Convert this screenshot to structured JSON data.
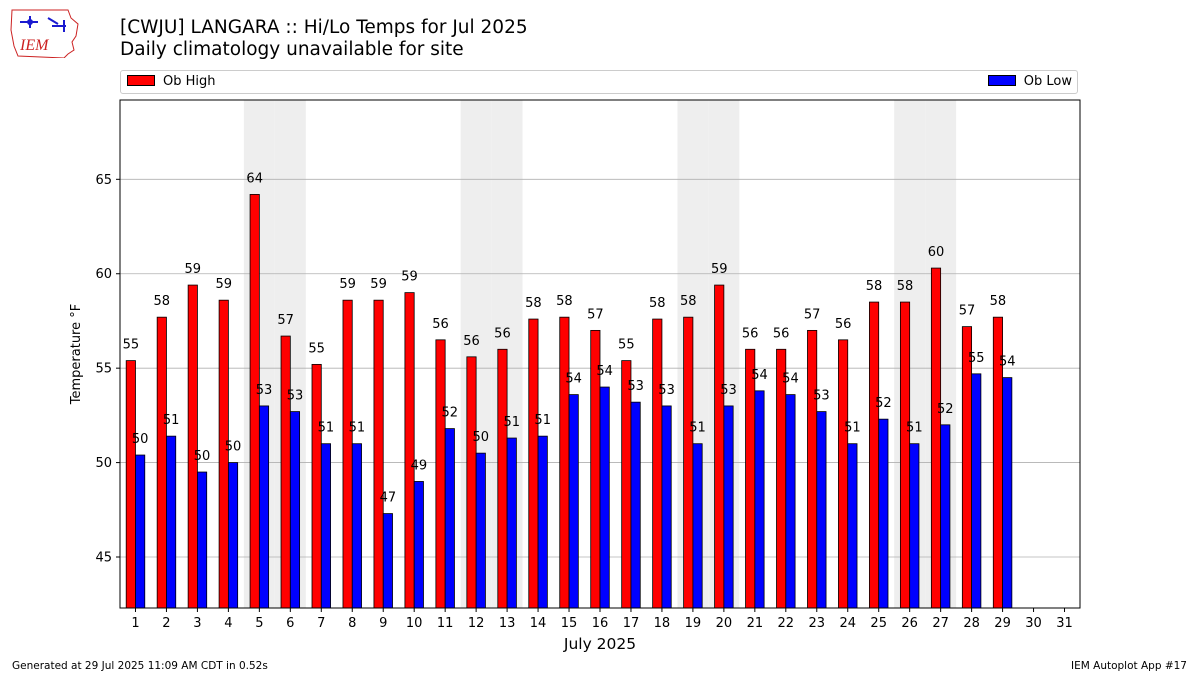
{
  "header": {
    "logo_text": "IEM",
    "title_line1": "[CWJU] LANGARA :: Hi/Lo Temps for Jul 2025",
    "title_line2": "Daily climatology unavailable for site"
  },
  "footer": {
    "generated": "Generated at 29 Jul 2025 11:09 AM CDT in 0.52s",
    "app": "IEM Autoplot App #17"
  },
  "colors": {
    "high": "#ff0000",
    "low": "#0000ff",
    "weekend_shade": "#eeeeee",
    "grid": "#b0b0b0"
  },
  "chart_data": {
    "type": "bar",
    "xlabel": "July 2025",
    "ylabel": "Temperature °F",
    "ylim": [
      42.3,
      69.2
    ],
    "yticks": [
      45,
      50,
      55,
      60,
      65
    ],
    "grid": "horizontal",
    "legend_placement": "top",
    "categories": [
      "1",
      "2",
      "3",
      "4",
      "5",
      "6",
      "7",
      "8",
      "9",
      "10",
      "11",
      "12",
      "13",
      "14",
      "15",
      "16",
      "17",
      "18",
      "19",
      "20",
      "21",
      "22",
      "23",
      "24",
      "25",
      "26",
      "27",
      "28",
      "29",
      "30",
      "31"
    ],
    "shaded_days": [
      5,
      6,
      12,
      13,
      19,
      20,
      26,
      27
    ],
    "series": [
      {
        "name": "Ob High",
        "values": [
          55.4,
          57.7,
          59.4,
          58.6,
          64.2,
          56.7,
          55.2,
          58.6,
          58.6,
          59.0,
          56.5,
          55.6,
          56.0,
          57.6,
          57.7,
          57.0,
          55.4,
          57.6,
          57.7,
          59.4,
          56.0,
          56.0,
          57.0,
          56.5,
          58.5,
          58.5,
          60.3,
          57.2,
          57.7,
          null,
          null
        ],
        "labels": [
          "55",
          "58",
          "59",
          "59",
          "64",
          "57",
          "55",
          "59",
          "59",
          "59",
          "56",
          "56",
          "56",
          "58",
          "58",
          "57",
          "55",
          "58",
          "58",
          "59",
          "56",
          "56",
          "57",
          "56",
          "58",
          "58",
          "60",
          "57",
          "58",
          "",
          ""
        ]
      },
      {
        "name": "Ob Low",
        "values": [
          50.4,
          51.4,
          49.5,
          50.0,
          53.0,
          52.7,
          51.0,
          51.0,
          47.3,
          49.0,
          51.8,
          50.5,
          51.3,
          51.4,
          53.6,
          54.0,
          53.2,
          53.0,
          51.0,
          53.0,
          53.8,
          53.6,
          52.7,
          51.0,
          52.3,
          51.0,
          52.0,
          54.7,
          54.5,
          null,
          null
        ],
        "labels": [
          "50",
          "51",
          "50",
          "50",
          "53",
          "53",
          "51",
          "51",
          "47",
          "49",
          "52",
          "50",
          "51",
          "51",
          "54",
          "54",
          "53",
          "53",
          "51",
          "53",
          "54",
          "54",
          "53",
          "51",
          "52",
          "51",
          "52",
          "55",
          "54",
          "",
          ""
        ]
      }
    ]
  }
}
